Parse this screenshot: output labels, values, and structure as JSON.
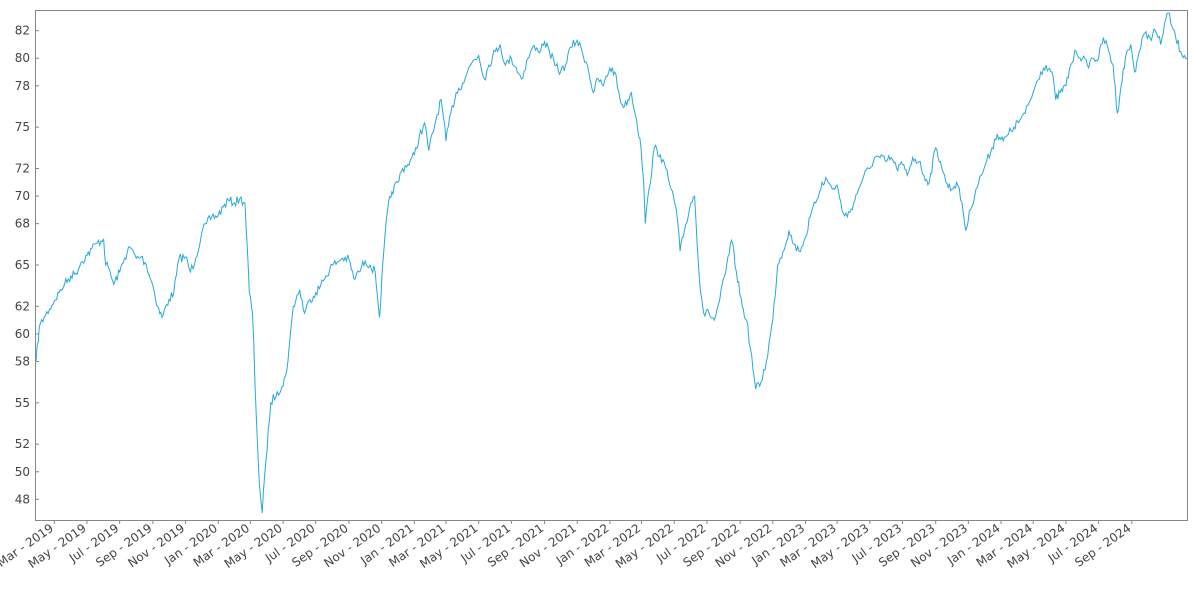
{
  "chart_data": {
    "type": "line",
    "title": "",
    "xlabel": "",
    "ylabel": "",
    "series_color": "#29a8d8",
    "frame_color": "#888888",
    "grid": false,
    "legend": "none",
    "ylim": [
      46.5,
      83.5
    ],
    "xlim": [
      "2019-01-24",
      "2024-12-13"
    ],
    "y_ticks": [
      48,
      50,
      52,
      55,
      58,
      60,
      62,
      65,
      68,
      70,
      72,
      75,
      78,
      80,
      82
    ],
    "y_tick_labels": [
      "48",
      "50",
      "52",
      "55",
      "58",
      "60",
      "62",
      "65",
      "68",
      "70",
      "72",
      "75",
      "78",
      "80",
      "82"
    ],
    "x_ticks": [
      {
        "date": "2019-03-01",
        "label": "Mar - 2019"
      },
      {
        "date": "2019-05-01",
        "label": "May - 2019"
      },
      {
        "date": "2019-07-01",
        "label": "Jul - 2019"
      },
      {
        "date": "2019-09-01",
        "label": "Sep - 2019"
      },
      {
        "date": "2019-11-01",
        "label": "Nov - 2019"
      },
      {
        "date": "2020-01-01",
        "label": "Jan - 2020"
      },
      {
        "date": "2020-03-01",
        "label": "Mar - 2020"
      },
      {
        "date": "2020-05-01",
        "label": "May - 2020"
      },
      {
        "date": "2020-07-01",
        "label": "Jul - 2020"
      },
      {
        "date": "2020-09-01",
        "label": "Sep - 2020"
      },
      {
        "date": "2020-11-01",
        "label": "Nov - 2020"
      },
      {
        "date": "2021-01-01",
        "label": "Jan - 2021"
      },
      {
        "date": "2021-03-01",
        "label": "Mar - 2021"
      },
      {
        "date": "2021-05-01",
        "label": "May - 2021"
      },
      {
        "date": "2021-07-01",
        "label": "Jul - 2021"
      },
      {
        "date": "2021-09-01",
        "label": "Sep - 2021"
      },
      {
        "date": "2021-11-01",
        "label": "Nov - 2021"
      },
      {
        "date": "2022-01-01",
        "label": "Jan - 2022"
      },
      {
        "date": "2022-03-01",
        "label": "Mar - 2022"
      },
      {
        "date": "2022-05-01",
        "label": "May - 2022"
      },
      {
        "date": "2022-07-01",
        "label": "Jul - 2022"
      },
      {
        "date": "2022-09-01",
        "label": "Sep - 2022"
      },
      {
        "date": "2022-11-01",
        "label": "Nov - 2022"
      },
      {
        "date": "2023-01-01",
        "label": "Jan - 2023"
      },
      {
        "date": "2023-03-01",
        "label": "Mar - 2023"
      },
      {
        "date": "2023-05-01",
        "label": "May - 2023"
      },
      {
        "date": "2023-07-01",
        "label": "Jul - 2023"
      },
      {
        "date": "2023-09-01",
        "label": "Sep - 2023"
      },
      {
        "date": "2023-11-01",
        "label": "Nov - 2023"
      },
      {
        "date": "2024-01-01",
        "label": "Jan - 2024"
      },
      {
        "date": "2024-03-01",
        "label": "Mar - 2024"
      },
      {
        "date": "2024-05-01",
        "label": "May - 2024"
      },
      {
        "date": "2024-07-01",
        "label": "Jul - 2024"
      },
      {
        "date": "2024-09-01",
        "label": "Sep - 2024"
      }
    ],
    "series": [
      {
        "points": [
          [
            "2019-01-26",
            58.0
          ],
          [
            "2019-02-01",
            60.5
          ],
          [
            "2019-02-10",
            61.2
          ],
          [
            "2019-02-20",
            61.8
          ],
          [
            "2019-03-01",
            62.4
          ],
          [
            "2019-03-10",
            63.0
          ],
          [
            "2019-03-20",
            63.6
          ],
          [
            "2019-04-01",
            64.2
          ],
          [
            "2019-04-10",
            64.4
          ],
          [
            "2019-04-20",
            65.2
          ],
          [
            "2019-05-01",
            65.7
          ],
          [
            "2019-05-10",
            66.2
          ],
          [
            "2019-05-20",
            66.6
          ],
          [
            "2019-06-01",
            66.9
          ],
          [
            "2019-06-05",
            65.0
          ],
          [
            "2019-06-10",
            64.8
          ],
          [
            "2019-06-20",
            63.6
          ],
          [
            "2019-07-01",
            64.5
          ],
          [
            "2019-07-10",
            65.5
          ],
          [
            "2019-07-20",
            66.3
          ],
          [
            "2019-08-01",
            65.5
          ],
          [
            "2019-08-10",
            65.6
          ],
          [
            "2019-08-20",
            65.0
          ],
          [
            "2019-09-01",
            63.5
          ],
          [
            "2019-09-10",
            62.0
          ],
          [
            "2019-09-18",
            61.2
          ],
          [
            "2019-10-01",
            62.5
          ],
          [
            "2019-10-10",
            63.0
          ],
          [
            "2019-10-20",
            65.5
          ],
          [
            "2019-11-01",
            65.6
          ],
          [
            "2019-11-10",
            64.5
          ],
          [
            "2019-11-20",
            65.5
          ],
          [
            "2019-12-01",
            67.3
          ],
          [
            "2019-12-10",
            68.0
          ],
          [
            "2019-12-20",
            68.5
          ],
          [
            "2020-01-01",
            68.6
          ],
          [
            "2020-01-10",
            69.2
          ],
          [
            "2020-01-20",
            69.7
          ],
          [
            "2020-01-31",
            69.5
          ],
          [
            "2020-02-10",
            69.8
          ],
          [
            "2020-02-20",
            69.5
          ],
          [
            "2020-02-28",
            63.0
          ],
          [
            "2020-03-05",
            61.5
          ],
          [
            "2020-03-12",
            54.0
          ],
          [
            "2020-03-18",
            49.0
          ],
          [
            "2020-03-23",
            47.0
          ],
          [
            "2020-03-30",
            50.8
          ],
          [
            "2020-04-08",
            55.0
          ],
          [
            "2020-04-20",
            55.8
          ],
          [
            "2020-05-01",
            56.2
          ],
          [
            "2020-05-10",
            58.0
          ],
          [
            "2020-05-20",
            62.0
          ],
          [
            "2020-06-01",
            63.2
          ],
          [
            "2020-06-10",
            61.5
          ],
          [
            "2020-06-20",
            62.5
          ],
          [
            "2020-07-01",
            63.0
          ],
          [
            "2020-07-10",
            63.5
          ],
          [
            "2020-07-20",
            64.2
          ],
          [
            "2020-08-01",
            65.0
          ],
          [
            "2020-08-10",
            65.2
          ],
          [
            "2020-08-20",
            65.5
          ],
          [
            "2020-09-01",
            65.4
          ],
          [
            "2020-09-10",
            64.0
          ],
          [
            "2020-09-20",
            64.5
          ],
          [
            "2020-10-01",
            65.3
          ],
          [
            "2020-10-10",
            65.0
          ],
          [
            "2020-10-20",
            64.5
          ],
          [
            "2020-10-28",
            61.2
          ],
          [
            "2020-11-05",
            66.0
          ],
          [
            "2020-11-12",
            69.0
          ],
          [
            "2020-11-20",
            70.3
          ],
          [
            "2020-12-01",
            71.0
          ],
          [
            "2020-12-10",
            72.0
          ],
          [
            "2020-12-20",
            72.3
          ],
          [
            "2021-01-01",
            73.0
          ],
          [
            "2021-01-10",
            74.3
          ],
          [
            "2021-01-20",
            75.3
          ],
          [
            "2021-01-28",
            73.3
          ],
          [
            "2021-02-10",
            75.5
          ],
          [
            "2021-02-20",
            77.0
          ],
          [
            "2021-03-01",
            74.0
          ],
          [
            "2021-03-10",
            76.0
          ],
          [
            "2021-03-20",
            77.5
          ],
          [
            "2021-04-01",
            78.2
          ],
          [
            "2021-04-10",
            79.0
          ],
          [
            "2021-04-20",
            79.8
          ],
          [
            "2021-05-01",
            80.2
          ],
          [
            "2021-05-12",
            78.5
          ],
          [
            "2021-05-20",
            79.5
          ],
          [
            "2021-06-01",
            80.5
          ],
          [
            "2021-06-10",
            81.0
          ],
          [
            "2021-06-20",
            79.5
          ],
          [
            "2021-07-01",
            80.0
          ],
          [
            "2021-07-10",
            79.3
          ],
          [
            "2021-07-20",
            78.5
          ],
          [
            "2021-08-01",
            80.0
          ],
          [
            "2021-08-10",
            80.8
          ],
          [
            "2021-08-20",
            80.5
          ],
          [
            "2021-09-01",
            81.2
          ],
          [
            "2021-09-10",
            80.5
          ],
          [
            "2021-09-20",
            79.5
          ],
          [
            "2021-10-01",
            79.0
          ],
          [
            "2021-10-10",
            79.5
          ],
          [
            "2021-10-20",
            80.8
          ],
          [
            "2021-11-01",
            81.3
          ],
          [
            "2021-11-10",
            80.5
          ],
          [
            "2021-11-20",
            79.5
          ],
          [
            "2021-12-01",
            77.5
          ],
          [
            "2021-12-10",
            78.5
          ],
          [
            "2021-12-20",
            78.0
          ],
          [
            "2022-01-01",
            79.3
          ],
          [
            "2022-01-10",
            79.0
          ],
          [
            "2022-01-20",
            77.0
          ],
          [
            "2022-01-28",
            76.5
          ],
          [
            "2022-02-10",
            77.5
          ],
          [
            "2022-02-20",
            75.5
          ],
          [
            "2022-02-28",
            73.5
          ],
          [
            "2022-03-05",
            71.0
          ],
          [
            "2022-03-08",
            68.0
          ],
          [
            "2022-03-15",
            70.5
          ],
          [
            "2022-03-25",
            73.5
          ],
          [
            "2022-04-05",
            73.0
          ],
          [
            "2022-04-15",
            72.0
          ],
          [
            "2022-04-25",
            70.5
          ],
          [
            "2022-05-05",
            69.0
          ],
          [
            "2022-05-12",
            66.0
          ],
          [
            "2022-05-20",
            67.5
          ],
          [
            "2022-06-01",
            69.5
          ],
          [
            "2022-06-08",
            70.0
          ],
          [
            "2022-06-17",
            64.0
          ],
          [
            "2022-06-25",
            61.5
          ],
          [
            "2022-07-05",
            61.5
          ],
          [
            "2022-07-15",
            61.0
          ],
          [
            "2022-07-25",
            62.5
          ],
          [
            "2022-08-05",
            64.5
          ],
          [
            "2022-08-16",
            66.8
          ],
          [
            "2022-08-25",
            64.5
          ],
          [
            "2022-09-05",
            62.0
          ],
          [
            "2022-09-13",
            61.0
          ],
          [
            "2022-09-20",
            59.0
          ],
          [
            "2022-09-30",
            56.0
          ],
          [
            "2022-10-10",
            56.5
          ],
          [
            "2022-10-20",
            58.0
          ],
          [
            "2022-11-01",
            61.0
          ],
          [
            "2022-11-10",
            65.0
          ],
          [
            "2022-11-20",
            66.0
          ],
          [
            "2022-12-01",
            67.5
          ],
          [
            "2022-12-10",
            66.5
          ],
          [
            "2022-12-20",
            66.0
          ],
          [
            "2023-01-01",
            67.0
          ],
          [
            "2023-01-10",
            68.5
          ],
          [
            "2023-01-20",
            69.5
          ],
          [
            "2023-02-01",
            71.0
          ],
          [
            "2023-02-10",
            71.2
          ],
          [
            "2023-02-20",
            70.5
          ],
          [
            "2023-03-01",
            70.8
          ],
          [
            "2023-03-10",
            69.0
          ],
          [
            "2023-03-20",
            68.5
          ],
          [
            "2023-04-01",
            69.5
          ],
          [
            "2023-04-10",
            70.5
          ],
          [
            "2023-04-20",
            71.5
          ],
          [
            "2023-05-01",
            72.0
          ],
          [
            "2023-05-10",
            72.8
          ],
          [
            "2023-05-20",
            72.8
          ],
          [
            "2023-06-01",
            72.5
          ],
          [
            "2023-06-10",
            72.8
          ],
          [
            "2023-06-20",
            72.0
          ],
          [
            "2023-07-01",
            72.3
          ],
          [
            "2023-07-10",
            71.5
          ],
          [
            "2023-07-20",
            72.8
          ],
          [
            "2023-08-01",
            72.5
          ],
          [
            "2023-08-10",
            71.5
          ],
          [
            "2023-08-20",
            71.0
          ],
          [
            "2023-09-01",
            73.5
          ],
          [
            "2023-09-10",
            72.5
          ],
          [
            "2023-09-20",
            71.0
          ],
          [
            "2023-10-01",
            70.5
          ],
          [
            "2023-10-10",
            71.0
          ],
          [
            "2023-10-20",
            69.5
          ],
          [
            "2023-10-27",
            67.5
          ],
          [
            "2023-11-05",
            69.0
          ],
          [
            "2023-11-15",
            70.5
          ],
          [
            "2023-11-25",
            71.5
          ],
          [
            "2023-12-05",
            72.5
          ],
          [
            "2023-12-15",
            73.5
          ],
          [
            "2023-12-25",
            74.5
          ],
          [
            "2024-01-05",
            74.0
          ],
          [
            "2024-01-15",
            74.5
          ],
          [
            "2024-01-25",
            75.0
          ],
          [
            "2024-02-05",
            75.5
          ],
          [
            "2024-02-15",
            76.0
          ],
          [
            "2024-02-25",
            77.0
          ],
          [
            "2024-03-05",
            78.0
          ],
          [
            "2024-03-15",
            79.0
          ],
          [
            "2024-03-25",
            79.5
          ],
          [
            "2024-04-05",
            79.0
          ],
          [
            "2024-04-12",
            77.0
          ],
          [
            "2024-04-20",
            77.5
          ],
          [
            "2024-05-01",
            78.0
          ],
          [
            "2024-05-10",
            79.5
          ],
          [
            "2024-05-20",
            80.5
          ],
          [
            "2024-06-01",
            80.0
          ],
          [
            "2024-06-10",
            79.5
          ],
          [
            "2024-06-20",
            80.0
          ],
          [
            "2024-07-01",
            80.0
          ],
          [
            "2024-07-10",
            81.5
          ],
          [
            "2024-07-20",
            80.5
          ],
          [
            "2024-07-28",
            79.5
          ],
          [
            "2024-08-05",
            76.0
          ],
          [
            "2024-08-12",
            78.0
          ],
          [
            "2024-08-20",
            80.0
          ],
          [
            "2024-08-30",
            81.0
          ],
          [
            "2024-09-06",
            79.0
          ],
          [
            "2024-09-15",
            80.5
          ],
          [
            "2024-09-25",
            81.8
          ],
          [
            "2024-10-05",
            81.5
          ],
          [
            "2024-10-15",
            82.0
          ],
          [
            "2024-10-25",
            81.0
          ],
          [
            "2024-11-01",
            82.5
          ],
          [
            "2024-11-08",
            83.3
          ],
          [
            "2024-11-15",
            82.3
          ],
          [
            "2024-11-22",
            81.5
          ],
          [
            "2024-12-01",
            80.5
          ],
          [
            "2024-12-08",
            80.2
          ],
          [
            "2024-12-13",
            80.0
          ]
        ]
      }
    ]
  }
}
